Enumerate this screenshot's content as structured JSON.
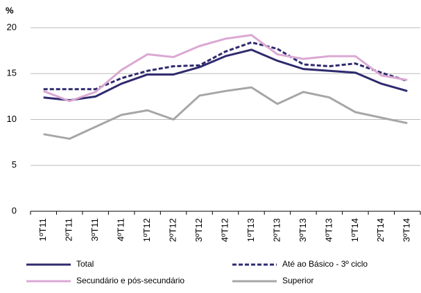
{
  "chart_data": {
    "type": "line",
    "y_label": "%",
    "categories": [
      "1ºT11",
      "2ºT11",
      "3ºT11",
      "4ºT11",
      "1ºT12",
      "2ºT12",
      "3ºT12",
      "4ºT12",
      "1ºT13",
      "2ºT13",
      "3ºT13",
      "4ºT13",
      "1ºT14",
      "2ºT14",
      "3ºT14"
    ],
    "series": [
      {
        "name": "Total",
        "color": "#2e2a6e",
        "style": "solid",
        "values": [
          12.4,
          12.1,
          12.5,
          13.9,
          14.9,
          14.9,
          15.7,
          16.9,
          17.6,
          16.4,
          15.5,
          15.3,
          15.1,
          13.9,
          13.1
        ]
      },
      {
        "name": "Até ao Básico - 3º ciclo",
        "color": "#2e2a6e",
        "style": "dashed",
        "values": [
          13.3,
          13.3,
          13.3,
          14.5,
          15.3,
          15.8,
          15.9,
          17.4,
          18.4,
          17.7,
          16.0,
          15.8,
          16.1,
          15.1,
          14.2
        ]
      },
      {
        "name": "Secundário e pós-secundário",
        "color": "#dba8d3",
        "style": "solid",
        "values": [
          13.1,
          12.0,
          13.0,
          15.4,
          17.1,
          16.8,
          18.0,
          18.8,
          19.2,
          17.1,
          16.6,
          16.9,
          16.9,
          14.8,
          14.3
        ]
      },
      {
        "name": "Superior",
        "color": "#a6a6a6",
        "style": "solid",
        "values": [
          8.4,
          7.9,
          9.2,
          10.5,
          11.0,
          10.0,
          12.6,
          13.1,
          13.5,
          11.7,
          13.0,
          12.4,
          10.8,
          10.2,
          9.6
        ]
      }
    ],
    "ylim": [
      0,
      20
    ],
    "yticks": [
      0,
      5,
      10,
      15,
      20
    ],
    "grid": true,
    "legend": "bottom"
  }
}
